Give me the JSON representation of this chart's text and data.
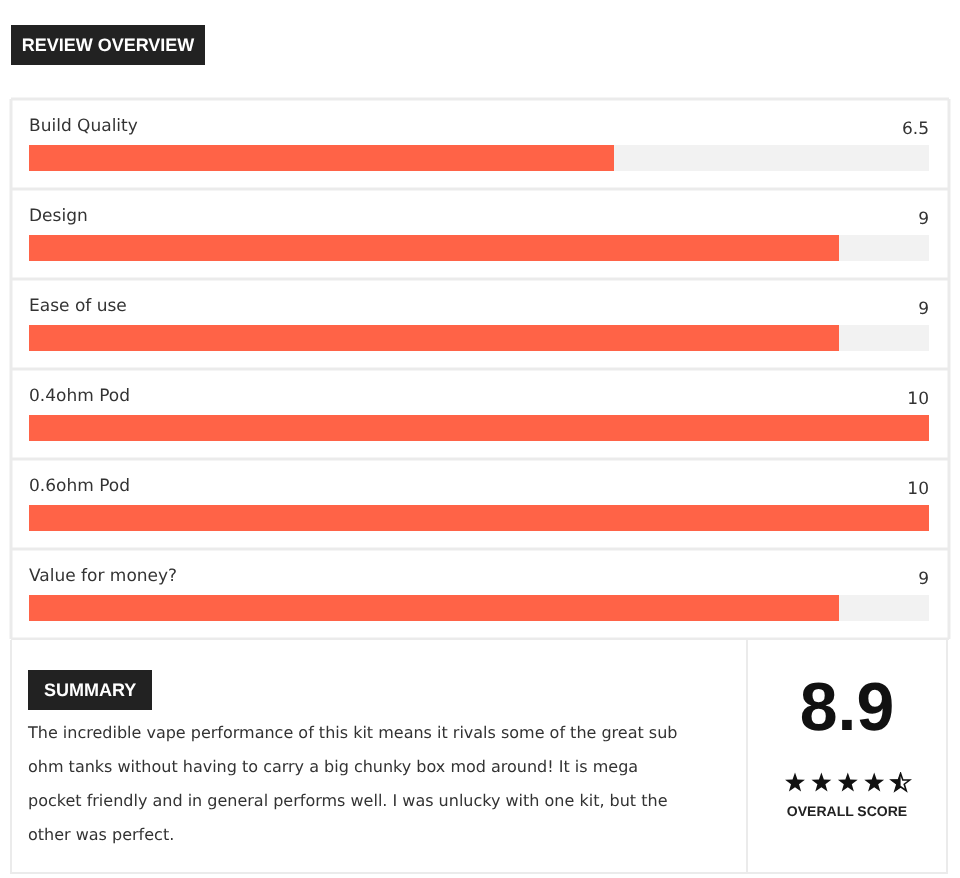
{
  "chart_data": {
    "type": "bar",
    "orientation": "horizontal",
    "title": "REVIEW OVERVIEW",
    "categories": [
      "Build Quality",
      "Design",
      "Ease of use",
      "0.4ohm Pod",
      "0.6ohm Pod",
      "Value for money?"
    ],
    "values": [
      6.5,
      9,
      9,
      10,
      10,
      9
    ],
    "color": "#ff6347",
    "xlim": [
      0,
      10
    ],
    "data_labels": true,
    "tick_labels": false,
    "annotations": [
      "SUMMARY",
      "The incredible vape performance of this kit means it rivals some of the great sub ohm tanks without having to carry a big chunky box mod around! It is mega pocket friendly and in general performs well. I was unlucky with one kit, but the other was perfect.",
      "8.9",
      "OVERALL SCORE"
    ]
  }
}
